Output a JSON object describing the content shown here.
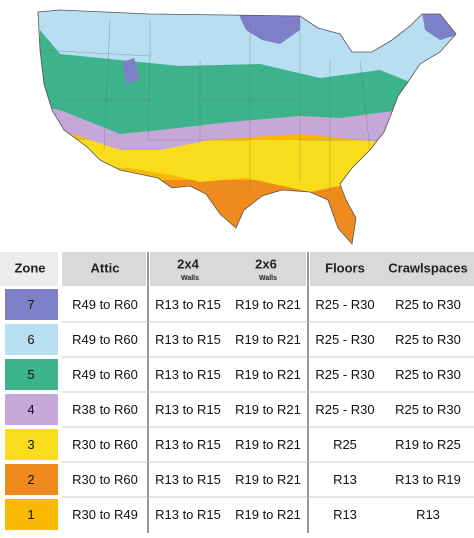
{
  "header": {
    "zone": "Zone",
    "attic": "Attic",
    "walls_2x4": "2x4",
    "walls_2x4_sub": "Walls",
    "walls_2x6": "2x6",
    "walls_2x6_sub": "Walls",
    "floors": "Floors",
    "crawlspaces": "Crawlspaces"
  },
  "rows": [
    {
      "zone": "7",
      "color": "#7d80c6",
      "attic": "R49 to R60",
      "walls_2x4": "R13 to R15",
      "walls_2x6": "R19 to R21",
      "floors": "R25 - R30",
      "crawlspaces": "R25 to R30"
    },
    {
      "zone": "6",
      "color": "#b8def2",
      "attic": "R49 to R60",
      "walls_2x4": "R13 to R15",
      "walls_2x6": "R19 to R21",
      "floors": "R25 - R30",
      "crawlspaces": "R25 to R30"
    },
    {
      "zone": "5",
      "color": "#3db38b",
      "attic": "R49 to R60",
      "walls_2x4": "R13 to R15",
      "walls_2x6": "R19 to R21",
      "floors": "R25 - R30",
      "crawlspaces": "R25 to R30"
    },
    {
      "zone": "4",
      "color": "#c6a8d8",
      "attic": "R38 to R60",
      "walls_2x4": "R13 to R15",
      "walls_2x6": "R19 to R21",
      "floors": "R25 - R30",
      "crawlspaces": "R25 to R30"
    },
    {
      "zone": "3",
      "color": "#f9dc1c",
      "attic": "R30 to R60",
      "walls_2x4": "R13 to R15",
      "walls_2x6": "R19 to R21",
      "floors": "R25",
      "crawlspaces": "R19 to R25"
    },
    {
      "zone": "2",
      "color": "#ef8a1d",
      "attic": "R30 to R60",
      "walls_2x4": "R13 to R15",
      "walls_2x6": "R19 to R21",
      "floors": "R13",
      "crawlspaces": "R13 to R19"
    },
    {
      "zone": "1",
      "color": "#f8b900",
      "attic": "R30 to R49",
      "walls_2x4": "R13 to R15",
      "walls_2x6": "R19 to R21",
      "floors": "R13",
      "crawlspaces": "R13"
    }
  ]
}
